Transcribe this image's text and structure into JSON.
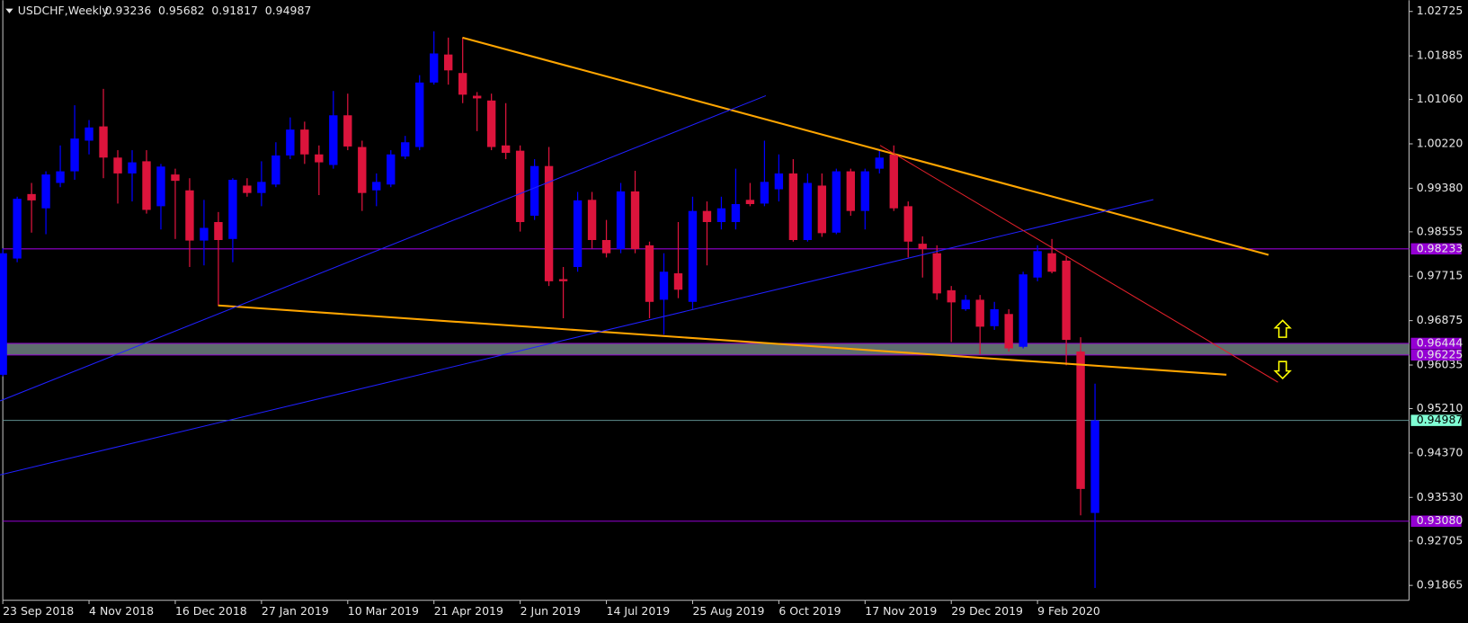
{
  "chart_data": {
    "type": "candlestick",
    "title": "USDCHF,Weekly",
    "header_values": [
      0.93236,
      0.95682,
      0.91817,
      0.94987
    ],
    "categories": [
      "23 Sep 2018",
      null,
      null,
      null,
      null,
      null,
      "4 Nov 2018",
      null,
      null,
      null,
      null,
      null,
      "16 Dec 2018",
      null,
      null,
      null,
      null,
      null,
      "27 Jan 2019",
      null,
      null,
      null,
      null,
      null,
      "10 Mar 2019",
      null,
      null,
      null,
      null,
      null,
      "21 Apr 2019",
      null,
      null,
      null,
      null,
      null,
      "2 Jun 2019",
      null,
      null,
      null,
      null,
      null,
      "14 Jul 2019",
      null,
      null,
      null,
      null,
      null,
      "25 Aug 2019",
      null,
      null,
      null,
      null,
      null,
      "6 Oct 2019",
      null,
      null,
      null,
      null,
      null,
      "17 Nov 2019",
      null,
      null,
      null,
      null,
      null,
      "29 Dec 2019",
      null,
      null,
      null,
      null,
      null,
      "9 Feb 2020",
      null,
      null,
      null,
      null
    ],
    "open": [
      0.9585,
      0.9805,
      0.9927,
      0.99,
      0.9948,
      0.997,
      1.0028,
      1.0055,
      0.9996,
      0.9966,
      0.9989,
      0.9904,
      0.9964,
      0.9934,
      0.9839,
      0.9874,
      0.9842,
      0.9943,
      0.9929,
      0.9945,
      1.0,
      1.0049,
      1.0002,
      0.9982,
      1.0076,
      1.0016,
      0.9934,
      0.9945,
      0.9998,
      1.0016,
      1.0138,
      1.0191,
      1.0156,
      1.0113,
      1.0104,
      1.0019,
      1.0009,
      0.9886,
      0.998,
      0.9766,
      0.9789,
      0.9916,
      0.984,
      0.9823,
      0.9932,
      0.983,
      0.9727,
      0.9777,
      0.9723,
      0.9895,
      0.9874,
      0.9874,
      0.9916,
      0.9909,
      0.9936,
      0.9966,
      0.984,
      0.9943,
      0.9854,
      0.997,
      0.9895,
      0.9975,
      1.0002,
      0.9904,
      0.9833,
      0.9815,
      0.9745,
      0.9709,
      0.9727,
      0.9677,
      0.97,
      0.9638,
      0.9769,
      0.9815,
      0.9801,
      0.9629,
      0.93236
    ],
    "high": [
      0.9824,
      0.9922,
      0.9948,
      0.997,
      1.0019,
      1.0095,
      1.0067,
      1.0126,
      1.001,
      1.001,
      1.001,
      0.9984,
      0.9975,
      0.9957,
      0.9916,
      0.9893,
      0.9957,
      0.9957,
      0.9989,
      1.0025,
      1.0072,
      1.0064,
      1.0019,
      1.0122,
      1.0117,
      1.0028,
      0.9966,
      1.001,
      1.0037,
      1.0152,
      1.0235,
      1.0223,
      1.0223,
      1.012,
      1.0117,
      1.0099,
      1.0019,
      0.9993,
      1.0016,
      0.9789,
      0.9931,
      0.9931,
      0.9878,
      0.9948,
      0.9971,
      0.9837,
      0.9815,
      0.9874,
      0.9922,
      0.9913,
      0.9922,
      0.9975,
      0.9948,
      1.0028,
      1.0002,
      0.9993,
      0.9966,
      0.9966,
      0.9975,
      0.9975,
      0.9975,
      1.001,
      1.0019,
      0.9913,
      0.9847,
      0.983,
      0.9753,
      0.9736,
      0.9736,
      0.9723,
      0.9709,
      0.978,
      0.983,
      0.9842,
      0.981,
      0.9656,
      0.95682
    ],
    "low": [
      0.9582,
      0.9798,
      0.9854,
      0.9851,
      0.994,
      0.9954,
      1.0002,
      0.9957,
      0.9909,
      0.9913,
      0.989,
      0.986,
      0.9842,
      0.9789,
      0.9792,
      0.9716,
      0.9798,
      0.9922,
      0.9904,
      0.994,
      0.9993,
      0.9984,
      0.9925,
      0.9975,
      1.001,
      0.9895,
      0.9904,
      0.994,
      0.9993,
      1.001,
      1.0134,
      1.0134,
      1.0099,
      1.0046,
      1.001,
      0.9993,
      0.9856,
      0.9878,
      0.9753,
      0.9692,
      0.978,
      0.9824,
      0.9807,
      0.9815,
      0.9815,
      0.9692,
      0.9661,
      0.973,
      0.9709,
      0.9792,
      0.986,
      0.986,
      0.9904,
      0.9904,
      0.9913,
      0.9837,
      0.9837,
      0.9846,
      0.9851,
      0.9886,
      0.986,
      0.9966,
      0.9895,
      0.9807,
      0.9769,
      0.9727,
      0.9647,
      0.9706,
      0.9624,
      0.967,
      0.9629,
      0.9635,
      0.9762,
      0.9777,
      0.9603,
      0.9319,
      0.91817
    ],
    "close": [
      0.9815,
      0.9918,
      0.9915,
      0.9964,
      0.997,
      1.0032,
      1.0053,
      0.9996,
      0.9966,
      0.9987,
      0.9897,
      0.9979,
      0.9952,
      0.9839,
      0.9863,
      0.984,
      0.9954,
      0.9929,
      0.995,
      1.0,
      1.0049,
      1.0002,
      0.9987,
      1.0076,
      1.0017,
      0.9929,
      0.995,
      1.0002,
      1.0025,
      1.0138,
      1.0193,
      1.0161,
      1.0115,
      1.0108,
      1.0016,
      1.0005,
      0.9874,
      0.998,
      0.9762,
      0.9762,
      0.9915,
      0.984,
      0.9815,
      0.9932,
      0.9823,
      0.9723,
      0.978,
      0.9746,
      0.9895,
      0.9874,
      0.99,
      0.9908,
      0.9908,
      0.995,
      0.9966,
      0.984,
      0.9948,
      0.9853,
      0.997,
      0.9895,
      0.997,
      0.9996,
      0.99,
      0.9837,
      0.9823,
      0.9739,
      0.9722,
      0.9727,
      0.9676,
      0.9709,
      0.9635,
      0.9775,
      0.9819,
      0.978,
      0.9651,
      0.9369,
      0.94987
    ],
    "up_color": "#0000ff",
    "down_color": "#dc143c",
    "ylim": [
      0.916,
      1.02938
    ],
    "yticks": [
      1.02725,
      1.01885,
      {
        "value": 1.0106,
        "label": "1.01060"
      },
      {
        "value": 1.0022,
        "label": "1.00220"
      },
      {
        "value": 0.9938,
        "label": "0.99380"
      },
      0.98555,
      0.97715,
      0.96875,
      0.96035,
      {
        "value": 0.9521,
        "label": "0.95210"
      },
      {
        "value": 0.9437,
        "label": "0.94370"
      },
      {
        "value": 0.9353,
        "label": "0.93530"
      },
      0.92705,
      0.91865
    ],
    "hlines": [
      {
        "value": 0.98233,
        "color": "#9400d3",
        "label_background": "#9400d3"
      },
      {
        "value": 0.94987,
        "color": "#5f8f8f",
        "label_background": "#7fffd4"
      },
      {
        "value": {
          "value": 0.9308,
          "label": "0.93080"
        },
        "color": "#9400d3",
        "label_background": "#9400d3"
      }
    ],
    "zones": [
      {
        "top": 0.96444,
        "bottom": 0.96225,
        "color": "#5e6e6e",
        "edge_color": "#9400d3"
      }
    ]
  }
}
